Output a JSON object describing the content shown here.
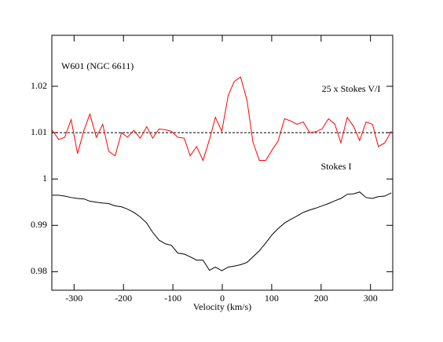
{
  "chart_data": {
    "type": "line",
    "x_label": "Velocity (km/s)",
    "annotations": [
      "W601 (NGC 6611)",
      "25 x Stokes V/I",
      "Stokes I"
    ],
    "x": [
      -344,
      -331,
      -319,
      -306,
      -293,
      -280,
      -268,
      -255,
      -242,
      -230,
      -217,
      -204,
      -192,
      -179,
      -166,
      -153,
      -141,
      -128,
      -115,
      -103,
      -90,
      -77,
      -65,
      -52,
      -39,
      -26,
      -14,
      -1,
      12,
      24,
      37,
      50,
      62,
      75,
      88,
      101,
      113,
      126,
      139,
      151,
      164,
      177,
      189,
      202,
      215,
      228,
      240,
      253,
      266,
      278,
      291,
      304,
      316,
      329,
      342
    ],
    "series": [
      {
        "name": "25 x Stokes V/I",
        "color": "#ff0000",
        "values": [
          1.0105,
          1.0085,
          1.009,
          1.0128,
          1.0055,
          1.0105,
          1.014,
          1.009,
          1.0118,
          1.006,
          1.005,
          1.01,
          1.009,
          1.0105,
          1.0088,
          1.0113,
          1.0088,
          1.0108,
          1.0106,
          1.0103,
          1.009,
          1.0088,
          1.005,
          1.007,
          1.004,
          1.0085,
          1.0133,
          1.0103,
          1.018,
          1.021,
          1.022,
          1.017,
          1.008,
          1.004,
          1.004,
          1.0063,
          1.0082,
          1.013,
          1.0125,
          1.0118,
          1.0123,
          1.01,
          1.0102,
          1.0108,
          1.013,
          1.0118,
          1.0078,
          1.0133,
          1.0113,
          1.0083,
          1.0123,
          1.0118,
          1.007,
          1.0078,
          1.0103
        ]
      },
      {
        "name": "Stokes I",
        "color": "#000000",
        "values": [
          0.9965,
          0.9965,
          0.9963,
          0.996,
          0.9958,
          0.9957,
          0.9952,
          0.995,
          0.9948,
          0.9947,
          0.9942,
          0.994,
          0.9935,
          0.9928,
          0.9918,
          0.9905,
          0.9885,
          0.9868,
          0.986,
          0.9857,
          0.984,
          0.9838,
          0.9832,
          0.9825,
          0.9825,
          0.9803,
          0.981,
          0.9802,
          0.981,
          0.9812,
          0.9815,
          0.982,
          0.9832,
          0.9845,
          0.9862,
          0.988,
          0.9893,
          0.9905,
          0.9913,
          0.992,
          0.9928,
          0.9933,
          0.9937,
          0.9942,
          0.9947,
          0.9953,
          0.9958,
          0.9967,
          0.9968,
          0.9972,
          0.996,
          0.9958,
          0.9962,
          0.9963,
          0.997
        ]
      }
    ],
    "hline": 1.01,
    "xlim": [
      -345,
      345
    ],
    "xticks": [
      -300,
      -200,
      -100,
      0,
      100,
      200,
      300
    ],
    "ylim": [
      0.976,
      1.031
    ],
    "yticks": [
      0.98,
      0.99,
      1,
      1.01,
      1.02
    ]
  }
}
